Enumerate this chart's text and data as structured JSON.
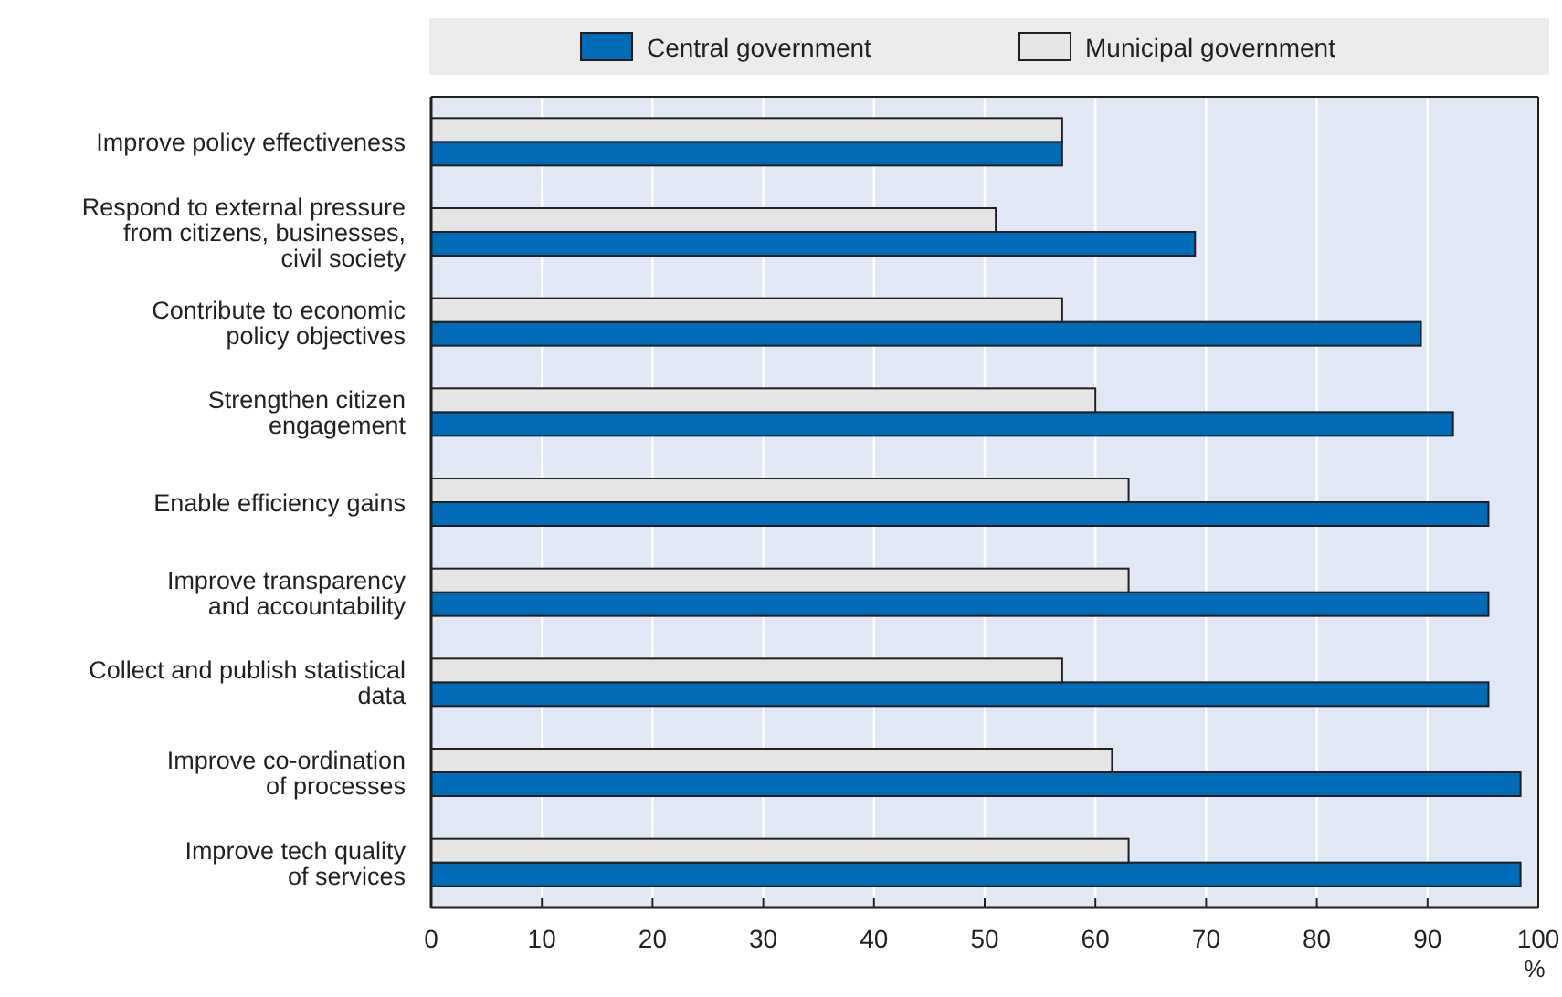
{
  "chart_data": {
    "type": "bar",
    "orientation": "horizontal",
    "xlabel": "%",
    "categories": [
      "Improve policy effectiveness",
      "Respond to external pressure\nfrom citizens, businesses,\ncivil society",
      "Contribute to economic\npolicy objectives",
      "Strengthen citizen\nengagement",
      "Enable efficiency gains",
      "Improve transparency\nand accountability",
      "Collect and publish statistical\ndata",
      "Improve co-ordination\nof processes",
      "Improve tech quality\nof services"
    ],
    "series": [
      {
        "name": "Central government",
        "color": "#006bb6",
        "values": [
          57,
          69,
          89.4,
          92.3,
          95.5,
          95.5,
          95.5,
          98.4,
          98.4
        ]
      },
      {
        "name": "Municipal government",
        "color": "#e5e5e5",
        "values": [
          57,
          51,
          57,
          60,
          63,
          63,
          57,
          61.5,
          63
        ]
      }
    ],
    "xlim": [
      0,
      100
    ],
    "xticks": [
      0,
      10,
      20,
      30,
      40,
      50,
      60,
      70,
      80,
      90,
      100
    ],
    "grid": "x",
    "legend": "top"
  }
}
